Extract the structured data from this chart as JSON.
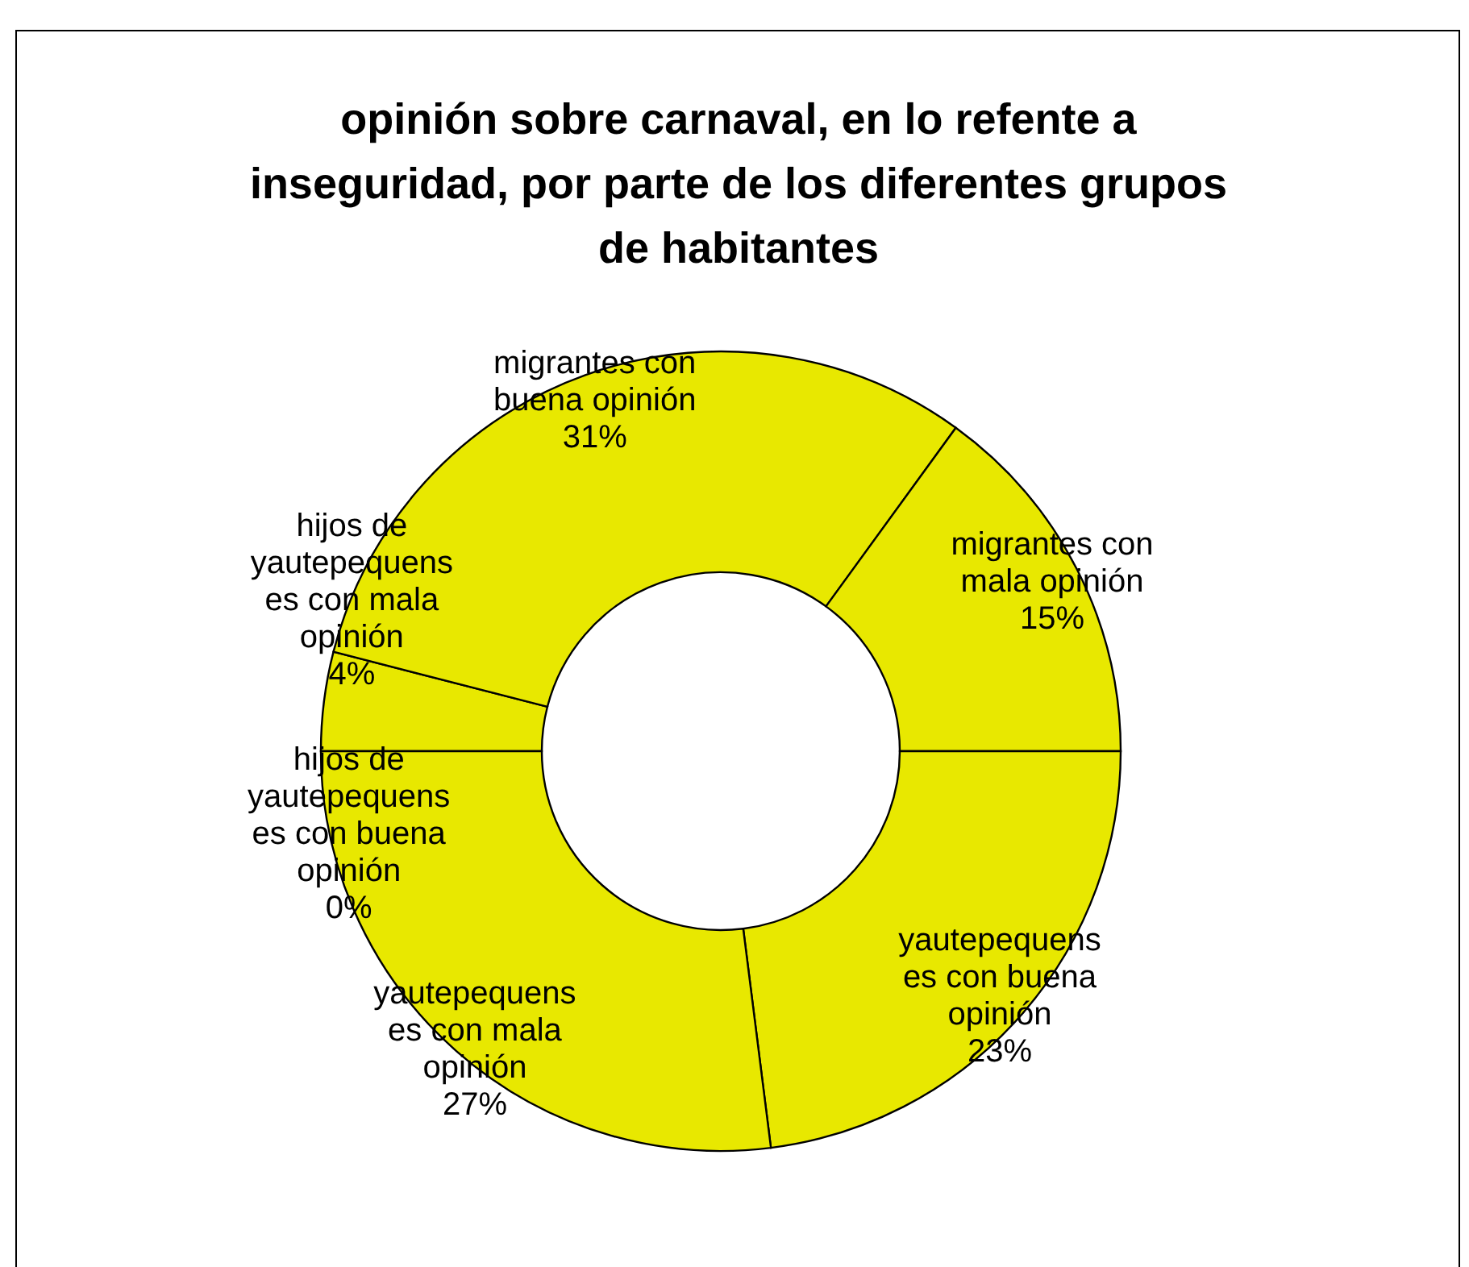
{
  "chart_data": {
    "type": "donut",
    "title": "opinión sobre carnaval, en lo refente a inseguridad, por parte de los diferentes grupos de habitantes",
    "categories": [
      "hijos de yautepequenses con buena opinión",
      "hijos de yautepequenses con mala opinión",
      "migrantes con buena opinión",
      "migrantes con mala opinión",
      "yautepequenses con buena opinión",
      "yautepequenses con mala opinión"
    ],
    "values": [
      0,
      4,
      31,
      15,
      23,
      27
    ],
    "colors": [
      "#e8e800",
      "#e8e800",
      "#e8e800",
      "#e8e800",
      "#e8e800",
      "#e8e800"
    ],
    "value_labels": [
      "0%",
      "4%",
      "31%",
      "15%",
      "23%",
      "27%"
    ]
  }
}
